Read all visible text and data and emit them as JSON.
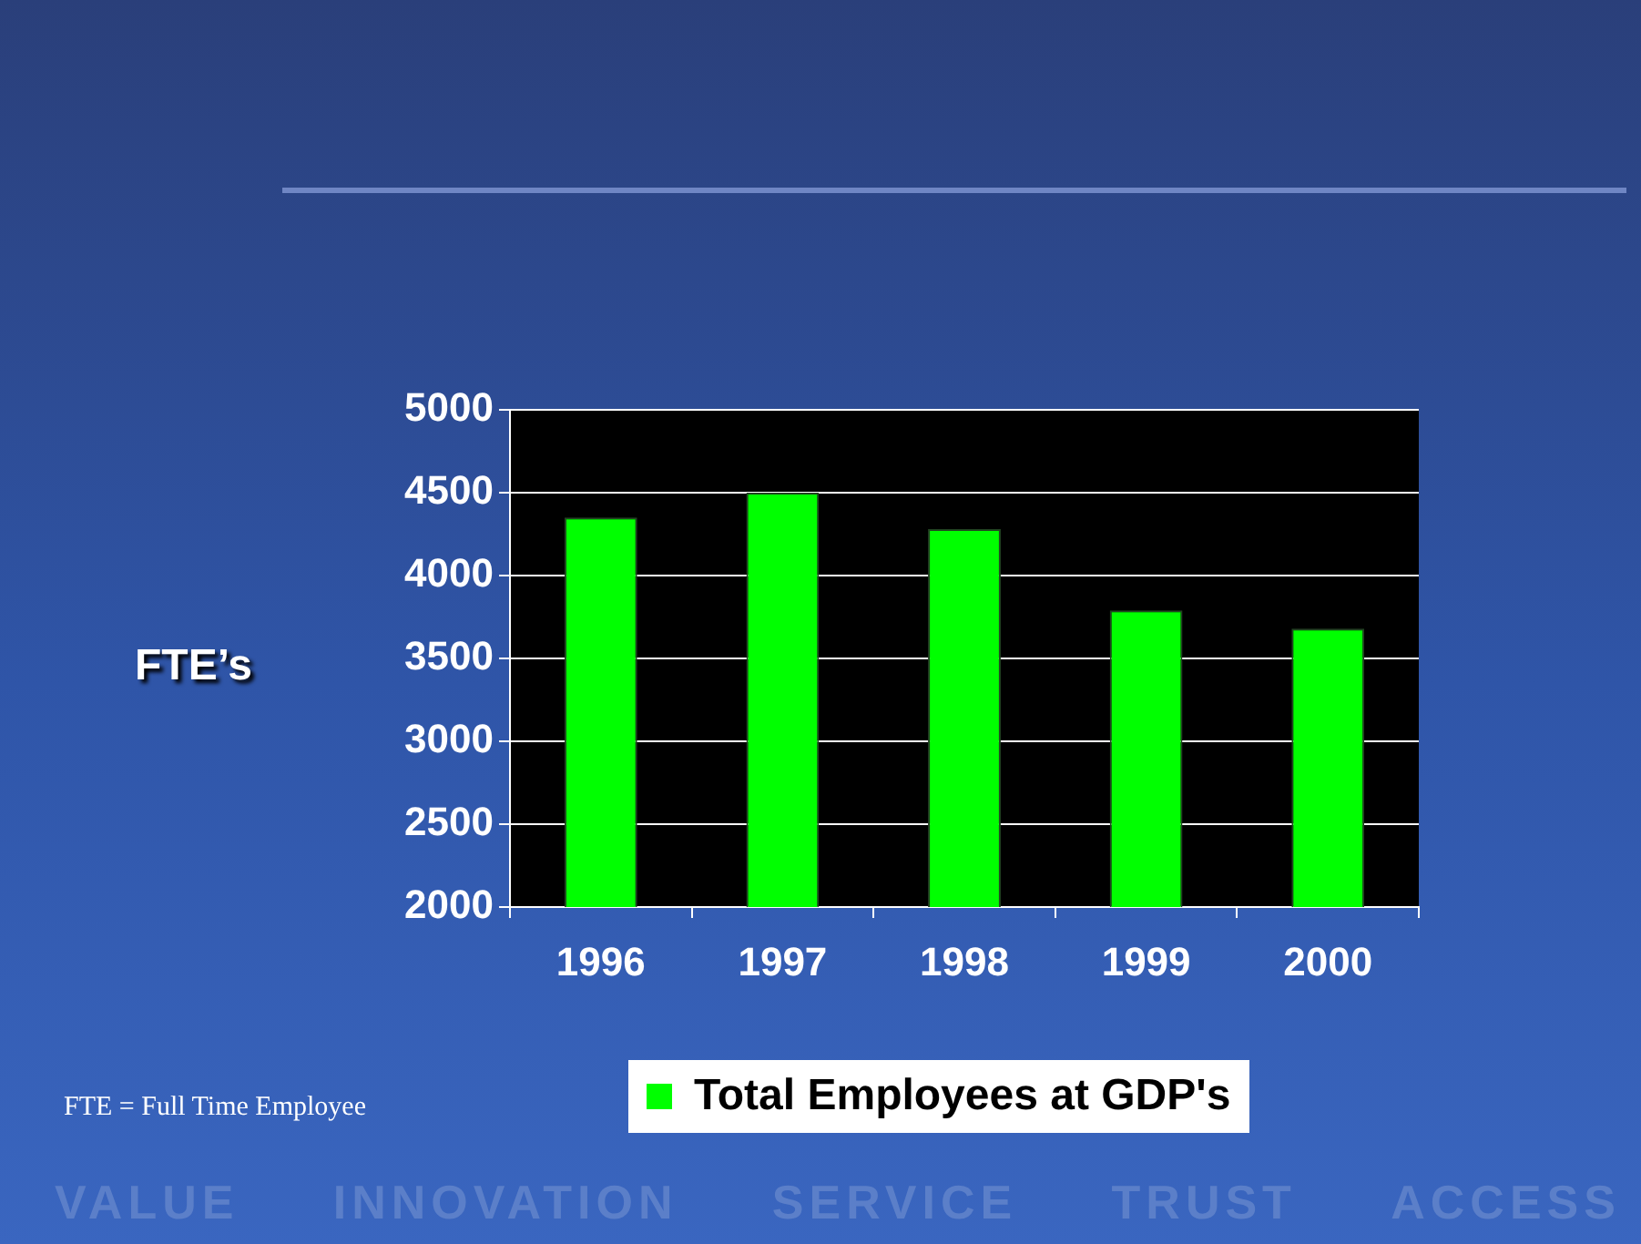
{
  "chart_data": {
    "type": "bar",
    "ylabel": "FTE’s",
    "categories": [
      "1996",
      "1997",
      "1998",
      "1999",
      "2000"
    ],
    "series": [
      {
        "name": "Total Employees at GDP's",
        "color": "#00ff00",
        "values": [
          4350,
          4500,
          4280,
          3790,
          3680
        ]
      }
    ],
    "ylim": [
      2000,
      5000
    ],
    "yticks": [
      2000,
      2500,
      3000,
      3500,
      4000,
      4500,
      5000
    ],
    "grid": "y",
    "legend": "bottom",
    "annotations": [
      "FTE = Full Time Employee",
      "VALUE",
      "INNOVATION",
      "SERVICE",
      "TRUST",
      "ACCESS"
    ]
  }
}
